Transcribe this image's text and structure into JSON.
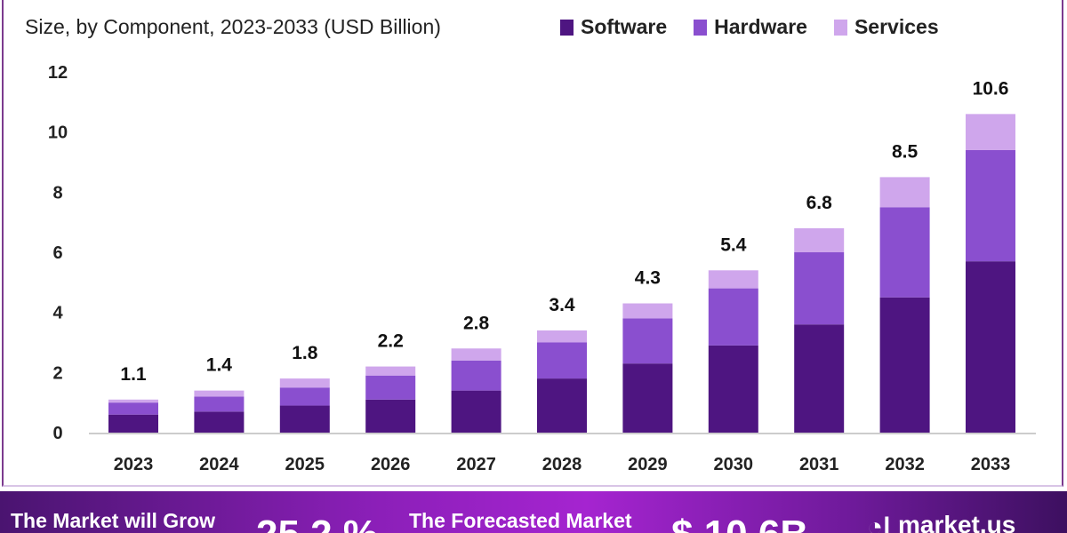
{
  "chart_data": {
    "type": "bar",
    "stacked": true,
    "title": "Size, by Component, 2023-2033 (USD Billion)",
    "xlabel": "",
    "ylabel": "",
    "ylim": [
      0,
      12
    ],
    "yticks": [
      "0",
      "2",
      "4",
      "6",
      "8",
      "10",
      "12"
    ],
    "categories": [
      "2023",
      "2024",
      "2025",
      "2026",
      "2027",
      "2028",
      "2029",
      "2030",
      "2031",
      "2032",
      "2033"
    ],
    "series": [
      {
        "name": "Software",
        "color": "#4e1581",
        "values": [
          0.6,
          0.7,
          0.9,
          1.1,
          1.4,
          1.8,
          2.3,
          2.9,
          3.6,
          4.5,
          5.7
        ]
      },
      {
        "name": "Hardware",
        "color": "#8a4fcf",
        "values": [
          0.4,
          0.5,
          0.6,
          0.8,
          1.0,
          1.2,
          1.5,
          1.9,
          2.4,
          3.0,
          3.7
        ]
      },
      {
        "name": "Services",
        "color": "#cfa6ec",
        "values": [
          0.1,
          0.2,
          0.3,
          0.3,
          0.4,
          0.4,
          0.5,
          0.6,
          0.8,
          1.0,
          1.2
        ]
      }
    ],
    "totals": [
      "1.1",
      "1.4",
      "1.8",
      "2.2",
      "2.8",
      "3.4",
      "4.3",
      "5.4",
      "6.8",
      "8.5",
      "10.6"
    ],
    "legend_position": "top-right",
    "grid": false
  },
  "banner": {
    "grow_label": "The Market will Grow",
    "cagr": "25.2 %",
    "forecast_label": "The Forecasted Market",
    "forecast_value": "$ 10.6B",
    "brand_icon": "market-us-logo-icon",
    "brand": "market.us"
  }
}
